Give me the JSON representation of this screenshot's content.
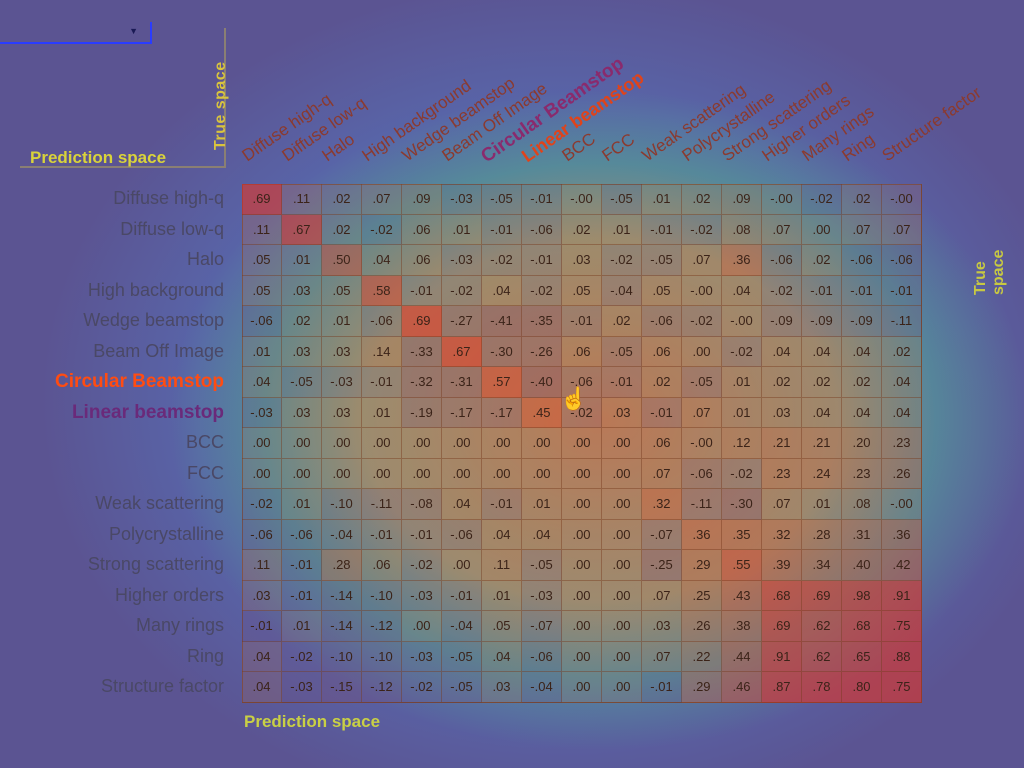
{
  "corner": {
    "true_space": "True space",
    "prediction_space": "Prediction space"
  },
  "right_label": "True space",
  "bottom_label": "Prediction space",
  "chart_data": {
    "type": "heatmap",
    "title": "",
    "xlabel": "Prediction space",
    "ylabel": "True space",
    "columns": [
      "Diffuse high-q",
      "Diffuse low-q",
      "Halo",
      "High background",
      "Wedge beamstop",
      "Beam Off Image",
      "Circular Beamstop",
      "Linear beamstop",
      "BCC",
      "FCC",
      "Weak scattering",
      "Polycrystalline",
      "Strong scattering",
      "Higher orders",
      "Many rings",
      "Ring",
      "Structure factor"
    ],
    "rows": [
      "Diffuse high-q",
      "Diffuse low-q",
      "Halo",
      "High background",
      "Wedge beamstop",
      "Beam Off Image",
      "Circular Beamstop",
      "Linear beamstop",
      "BCC",
      "FCC",
      "Weak scattering",
      "Polycrystalline",
      "Strong scattering",
      "Higher orders",
      "Many rings",
      "Ring",
      "Structure factor"
    ],
    "highlighted": [
      "Circular Beamstop",
      "Linear beamstop"
    ],
    "values": [
      [
        ".69",
        ".11",
        ".02",
        ".07",
        ".09",
        "-.03",
        "-.05",
        "-.01",
        "-.00",
        "-.05",
        ".01",
        ".02",
        ".09",
        "-.00",
        "-.02",
        ".02",
        "-.00"
      ],
      [
        ".11",
        ".67",
        ".02",
        "-.02",
        ".06",
        ".01",
        "-.01",
        "-.06",
        ".02",
        ".01",
        "-.01",
        "-.02",
        ".08",
        ".07",
        ".00",
        ".07",
        ".07"
      ],
      [
        ".05",
        ".01",
        ".50",
        ".04",
        ".06",
        "-.03",
        "-.02",
        "-.01",
        ".03",
        "-.02",
        "-.05",
        ".07",
        ".36",
        "-.06",
        ".02",
        "-.06",
        "-.06"
      ],
      [
        ".05",
        ".03",
        ".05",
        ".58",
        "-.01",
        "-.02",
        ".04",
        "-.02",
        ".05",
        "-.04",
        ".05",
        "-.00",
        ".04",
        "-.02",
        "-.01",
        "-.01",
        "-.01"
      ],
      [
        "-.06",
        ".02",
        ".01",
        "-.06",
        ".69",
        "-.27",
        "-.41",
        "-.35",
        "-.01",
        ".02",
        "-.06",
        "-.02",
        "-.00",
        "-.09",
        "-.09",
        "-.09",
        "-.11"
      ],
      [
        ".01",
        ".03",
        ".03",
        ".14",
        "-.33",
        ".67",
        "-.30",
        "-.26",
        ".06",
        "-.05",
        ".06",
        ".00",
        "-.02",
        ".04",
        ".04",
        ".04",
        ".02"
      ],
      [
        ".04",
        "-.05",
        "-.03",
        "-.01",
        "-.32",
        "-.31",
        ".57",
        "-.40",
        "-.06",
        "-.01",
        ".02",
        "-.05",
        ".01",
        ".02",
        ".02",
        ".02",
        ".04"
      ],
      [
        "-.03",
        ".03",
        ".03",
        ".01",
        "-.19",
        "-.17",
        "-.17",
        ".45",
        "-.02",
        ".03",
        "-.01",
        ".07",
        ".01",
        ".03",
        ".04",
        ".04",
        ".04"
      ],
      [
        ".00",
        ".00",
        ".00",
        ".00",
        ".00",
        ".00",
        ".00",
        ".00",
        ".00",
        ".00",
        ".06",
        "-.00",
        ".12",
        ".21",
        ".21",
        ".20",
        ".23"
      ],
      [
        ".00",
        ".00",
        ".00",
        ".00",
        ".00",
        ".00",
        ".00",
        ".00",
        ".00",
        ".00",
        ".07",
        "-.06",
        "-.02",
        ".23",
        ".24",
        ".23",
        ".26"
      ],
      [
        "-.02",
        ".01",
        "-.10",
        "-.11",
        "-.08",
        ".04",
        "-.01",
        ".01",
        ".00",
        ".00",
        ".32",
        "-.11",
        "-.30",
        ".07",
        ".01",
        ".08",
        "-.00"
      ],
      [
        "-.06",
        "-.06",
        "-.04",
        "-.01",
        "-.01",
        "-.06",
        ".04",
        ".04",
        ".00",
        ".00",
        "-.07",
        ".36",
        ".35",
        ".32",
        ".28",
        ".31",
        ".36"
      ],
      [
        ".11",
        "-.01",
        ".28",
        ".06",
        "-.02",
        ".00",
        ".11",
        "-.05",
        ".00",
        ".00",
        "-.25",
        ".29",
        ".55",
        ".39",
        ".34",
        ".40",
        ".42"
      ],
      [
        ".03",
        "-.01",
        "-.14",
        "-.10",
        "-.03",
        "-.01",
        ".01",
        "-.03",
        ".00",
        ".00",
        ".07",
        ".25",
        ".43",
        ".68",
        ".69",
        ".98",
        ".91"
      ],
      [
        "-.01",
        ".01",
        "-.14",
        "-.12",
        ".00",
        "-.04",
        ".05",
        "-.07",
        ".00",
        ".00",
        ".03",
        ".26",
        ".38",
        ".69",
        ".62",
        ".68",
        ".75"
      ],
      [
        ".04",
        "-.02",
        "-.10",
        "-.10",
        "-.03",
        "-.05",
        ".04",
        "-.06",
        ".00",
        ".00",
        ".07",
        ".22",
        ".44",
        ".91",
        ".62",
        ".65",
        ".88"
      ],
      [
        ".04",
        "-.03",
        "-.15",
        "-.12",
        "-.02",
        "-.05",
        ".03",
        "-.04",
        ".00",
        ".00",
        "-.01",
        ".29",
        ".46",
        ".87",
        ".78",
        ".80",
        ".75"
      ]
    ]
  }
}
